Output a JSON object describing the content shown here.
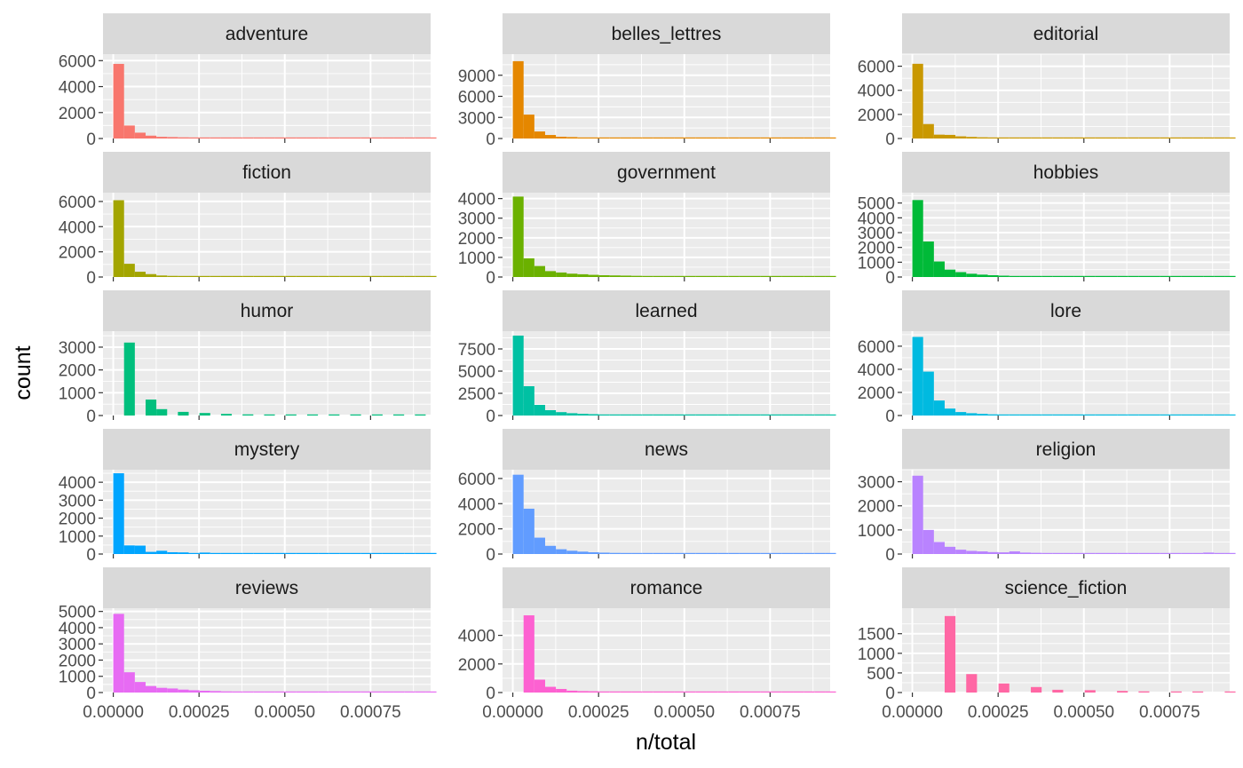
{
  "chart_data": {
    "type": "bar",
    "subtype": "faceted-histogram",
    "title": "",
    "xlabel": "n/total",
    "ylabel": "count",
    "xlim": [
      -3e-05,
      0.000925
    ],
    "x_ticks": [
      "0.00000",
      "0.00025",
      "0.00050",
      "0.00075"
    ],
    "x_tick_values": [
      0,
      0.00025,
      0.0005,
      0.00075
    ],
    "x_ticks_shown_on_bottom_row": true,
    "bin_width": 3.14e-05,
    "grid": true,
    "legend": "none",
    "background": "#EBEBEB",
    "strip_background": "#D9D9D9",
    "facets": [
      {
        "name": "adventure",
        "color": "#F8766D",
        "ylim": [
          0,
          6500
        ],
        "y_ticks": [
          "0",
          "2000",
          "4000",
          "6000"
        ],
        "y_tick_values": [
          0,
          2000,
          4000,
          6000
        ],
        "counts": [
          5750,
          1000,
          450,
          220,
          130,
          110,
          90,
          70,
          45,
          35,
          30,
          25,
          20,
          18,
          15,
          14,
          12,
          10,
          9,
          8,
          7,
          6,
          5,
          5,
          4,
          4,
          3,
          3,
          3,
          2
        ]
      },
      {
        "name": "belles_lettres",
        "color": "#E58700",
        "ylim": [
          0,
          12000
        ],
        "y_ticks": [
          "0",
          "3000",
          "6000",
          "9000"
        ],
        "y_tick_values": [
          0,
          3000,
          6000,
          9000
        ],
        "counts": [
          11000,
          3400,
          1000,
          500,
          250,
          200,
          140,
          100,
          70,
          55,
          45,
          35,
          30,
          25,
          20,
          18,
          15,
          12,
          10,
          9,
          8,
          7,
          6,
          5,
          5,
          4,
          4,
          3,
          3,
          3
        ]
      },
      {
        "name": "editorial",
        "color": "#C99800",
        "ylim": [
          0,
          7000
        ],
        "y_ticks": [
          "0",
          "2000",
          "4000",
          "6000"
        ],
        "y_tick_values": [
          0,
          2000,
          4000,
          6000
        ],
        "counts": [
          6200,
          1200,
          320,
          300,
          180,
          130,
          100,
          70,
          50,
          40,
          35,
          30,
          25,
          20,
          18,
          15,
          12,
          10,
          9,
          8,
          7,
          6,
          5,
          5,
          4,
          4,
          3,
          3,
          3,
          2
        ]
      },
      {
        "name": "fiction",
        "color": "#A3A500",
        "ylim": [
          0,
          6700
        ],
        "y_ticks": [
          "0",
          "2000",
          "4000",
          "6000"
        ],
        "y_tick_values": [
          0,
          2000,
          4000,
          6000
        ],
        "counts": [
          6100,
          1050,
          420,
          230,
          120,
          90,
          70,
          55,
          40,
          30,
          25,
          20,
          18,
          15,
          12,
          10,
          9,
          8,
          7,
          6,
          5,
          5,
          4,
          4,
          3,
          3,
          3,
          2,
          2,
          2
        ]
      },
      {
        "name": "government",
        "color": "#6BB100",
        "ylim": [
          0,
          4300
        ],
        "y_ticks": [
          "0",
          "1000",
          "2000",
          "3000",
          "4000"
        ],
        "y_tick_values": [
          0,
          1000,
          2000,
          3000,
          4000
        ],
        "counts": [
          4100,
          950,
          560,
          300,
          230,
          170,
          140,
          110,
          90,
          80,
          70,
          60,
          50,
          45,
          40,
          35,
          30,
          25,
          20,
          18,
          15,
          12,
          10,
          9,
          8,
          7,
          6,
          5,
          4,
          4
        ]
      },
      {
        "name": "hobbies",
        "color": "#00BA38",
        "ylim": [
          0,
          5700
        ],
        "y_ticks": [
          "0",
          "1000",
          "2000",
          "3000",
          "4000",
          "5000"
        ],
        "y_tick_values": [
          0,
          1000,
          2000,
          3000,
          4000,
          5000
        ],
        "counts": [
          5200,
          2400,
          1050,
          500,
          330,
          220,
          160,
          120,
          90,
          70,
          55,
          45,
          35,
          30,
          25,
          20,
          18,
          15,
          12,
          10,
          9,
          8,
          7,
          6,
          5,
          5,
          4,
          4,
          3,
          3
        ]
      },
      {
        "name": "humor",
        "color": "#00BF7D",
        "ylim": [
          0,
          3700
        ],
        "y_ticks": [
          "0",
          "1000",
          "2000",
          "3000"
        ],
        "y_tick_values": [
          0,
          1000,
          2000,
          3000
        ],
        "counts": [
          0,
          3200,
          0,
          700,
          280,
          0,
          160,
          0,
          110,
          0,
          70,
          0,
          50,
          0,
          40,
          0,
          30,
          0,
          25,
          0,
          20,
          0,
          15,
          0,
          12,
          0,
          10,
          0,
          8,
          0
        ]
      },
      {
        "name": "learned",
        "color": "#00C1A3",
        "ylim": [
          0,
          9500
        ],
        "y_ticks": [
          "0",
          "2500",
          "5000",
          "7500"
        ],
        "y_tick_values": [
          0,
          2500,
          5000,
          7500
        ],
        "counts": [
          9000,
          3300,
          1200,
          600,
          380,
          260,
          190,
          150,
          120,
          90,
          70,
          55,
          45,
          35,
          30,
          25,
          20,
          18,
          15,
          12,
          10,
          9,
          8,
          7,
          6,
          5,
          5,
          4,
          4,
          3
        ]
      },
      {
        "name": "lore",
        "color": "#00BAE0",
        "ylim": [
          0,
          7300
        ],
        "y_ticks": [
          "0",
          "2000",
          "4000",
          "6000"
        ],
        "y_tick_values": [
          0,
          2000,
          4000,
          6000
        ],
        "counts": [
          6800,
          3800,
          1300,
          600,
          300,
          200,
          140,
          100,
          80,
          60,
          45,
          35,
          30,
          25,
          20,
          18,
          15,
          12,
          10,
          9,
          8,
          7,
          6,
          5,
          5,
          4,
          4,
          3,
          3,
          2
        ]
      },
      {
        "name": "mystery",
        "color": "#00A5FF",
        "ylim": [
          0,
          4700
        ],
        "y_ticks": [
          "0",
          "1000",
          "2000",
          "3000",
          "4000"
        ],
        "y_tick_values": [
          0,
          1000,
          2000,
          3000,
          4000
        ],
        "counts": [
          4500,
          480,
          470,
          120,
          180,
          100,
          90,
          40,
          80,
          30,
          60,
          25,
          30,
          20,
          25,
          15,
          20,
          12,
          15,
          10,
          12,
          8,
          10,
          6,
          8,
          5,
          6,
          4,
          5,
          3
        ]
      },
      {
        "name": "news",
        "color": "#619CFF",
        "ylim": [
          0,
          6700
        ],
        "y_ticks": [
          "0",
          "2000",
          "4000",
          "6000"
        ],
        "y_tick_values": [
          0,
          2000,
          4000,
          6000
        ],
        "counts": [
          6300,
          3600,
          1300,
          650,
          380,
          260,
          190,
          140,
          110,
          90,
          70,
          55,
          45,
          35,
          30,
          25,
          20,
          18,
          15,
          12,
          10,
          9,
          8,
          7,
          6,
          5,
          5,
          4,
          4,
          3
        ]
      },
      {
        "name": "religion",
        "color": "#B983FF",
        "ylim": [
          0,
          3500
        ],
        "y_ticks": [
          "0",
          "1000",
          "2000",
          "3000"
        ],
        "y_tick_values": [
          0,
          1000,
          2000,
          3000
        ],
        "counts": [
          3250,
          1000,
          500,
          300,
          180,
          130,
          110,
          80,
          70,
          110,
          60,
          50,
          40,
          40,
          35,
          30,
          30,
          25,
          20,
          40,
          15,
          12,
          10,
          10,
          8,
          8,
          6,
          60,
          5,
          4
        ]
      },
      {
        "name": "reviews",
        "color": "#E76BF3",
        "ylim": [
          0,
          5200
        ],
        "y_ticks": [
          "0",
          "1000",
          "2000",
          "3000",
          "4000",
          "5000"
        ],
        "y_tick_values": [
          0,
          1000,
          2000,
          3000,
          4000,
          5000
        ],
        "counts": [
          4850,
          1250,
          650,
          400,
          290,
          250,
          180,
          140,
          110,
          90,
          70,
          60,
          50,
          40,
          35,
          30,
          25,
          20,
          18,
          15,
          12,
          10,
          9,
          8,
          7,
          6,
          5,
          5,
          4,
          4
        ]
      },
      {
        "name": "romance",
        "color": "#FD61D1",
        "ylim": [
          0,
          5900
        ],
        "y_ticks": [
          "0",
          "2000",
          "4000"
        ],
        "y_tick_values": [
          0,
          2000,
          4000
        ],
        "counts": [
          0,
          5400,
          900,
          400,
          250,
          130,
          100,
          90,
          60,
          50,
          40,
          35,
          30,
          25,
          20,
          18,
          15,
          12,
          10,
          9,
          8,
          8,
          50,
          6,
          5,
          5,
          4,
          4,
          3,
          3
        ]
      },
      {
        "name": "science_fiction",
        "color": "#FF67A4",
        "ylim": [
          0,
          2150
        ],
        "y_ticks": [
          "0",
          "500",
          "1000",
          "1500"
        ],
        "y_tick_values": [
          0,
          500,
          1000,
          1500
        ],
        "counts": [
          0,
          0,
          0,
          1950,
          0,
          470,
          0,
          0,
          230,
          0,
          0,
          140,
          0,
          70,
          0,
          0,
          60,
          0,
          0,
          40,
          0,
          30,
          0,
          0,
          20,
          0,
          15,
          0,
          0,
          10
        ]
      }
    ]
  }
}
